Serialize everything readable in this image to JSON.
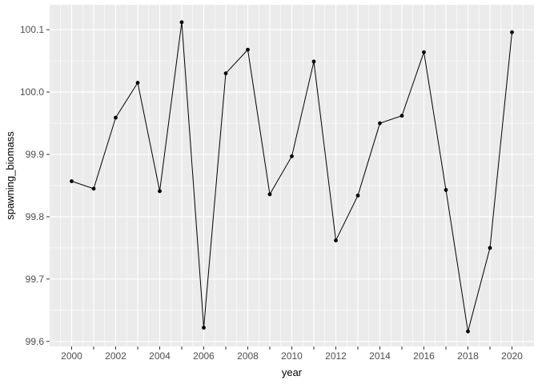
{
  "figure": {
    "background": "#ffffff",
    "panel_background": "#ebebeb",
    "grid_color": "#ffffff",
    "tick_color": "#333333",
    "axis_text_color": "#4d4d4d",
    "axis_title_color": "#000000"
  },
  "chart_data": {
    "type": "line",
    "title": "",
    "xlabel": "year",
    "ylabel": "spawning_biomass",
    "series": [
      {
        "name": "spawning_biomass",
        "color": "#000000",
        "marker": "filled-circle",
        "x": [
          2000,
          2001,
          2002,
          2003,
          2004,
          2005,
          2006,
          2007,
          2008,
          2009,
          2010,
          2011,
          2012,
          2013,
          2014,
          2015,
          2016,
          2017,
          2018,
          2019,
          2020
        ],
        "y": [
          99.857,
          99.845,
          99.959,
          100.015,
          99.841,
          100.112,
          99.622,
          100.03,
          100.068,
          99.836,
          99.897,
          100.049,
          99.762,
          99.834,
          99.95,
          99.962,
          100.064,
          99.843,
          99.616,
          99.75,
          100.096
        ]
      }
    ],
    "xlim": [
      1999,
      2021
    ],
    "ylim": [
      99.592,
      100.14
    ],
    "x_tick_values": [
      2000,
      2001,
      2002,
      2003,
      2004,
      2005,
      2006,
      2007,
      2008,
      2009,
      2010,
      2011,
      2012,
      2013,
      2014,
      2015,
      2016,
      2017,
      2018,
      2019,
      2020
    ],
    "x_tick_labels": [
      "2000",
      "",
      "2002",
      "",
      "2004",
      "",
      "2006",
      "",
      "2008",
      "",
      "2010",
      "",
      "2012",
      "",
      "2014",
      "",
      "2016",
      "",
      "2018",
      "",
      "2020"
    ],
    "y_tick_values": [
      99.6,
      99.7,
      99.8,
      99.9,
      100.0,
      100.1
    ],
    "y_tick_labels": [
      "99.6",
      "99.7",
      "99.8",
      "99.9",
      "100.0",
      "100.1"
    ],
    "x_minor_breaks_step": 0.5,
    "y_minor_breaks_step": 0.05,
    "grid": "major-and-minor",
    "legend_position": "none",
    "theme": "ggplot2-grey"
  }
}
